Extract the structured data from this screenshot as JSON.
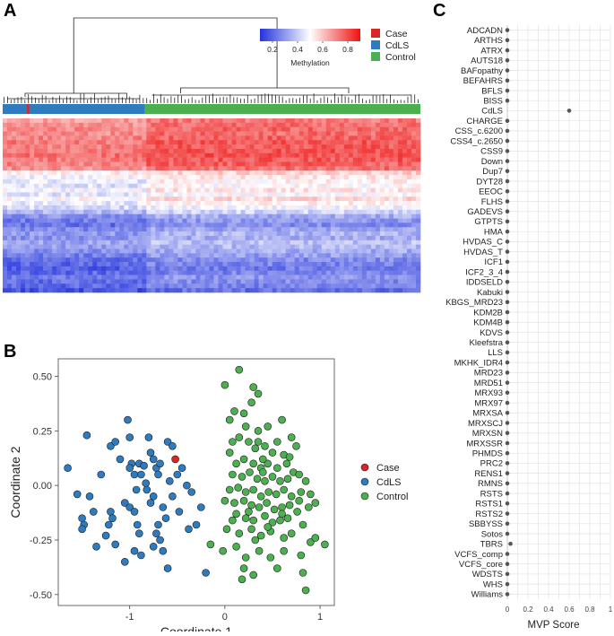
{
  "panel_labels": {
    "a": "A",
    "b": "B",
    "c": "C"
  },
  "colors": {
    "case": "#d62728",
    "cdls": "#2f7bbf",
    "control": "#4caf50",
    "heat_low": "#2233dd",
    "heat_mid": "#ffffff",
    "heat_high": "#ee1111"
  },
  "chart_data": [
    {
      "type": "heatmap",
      "panel": "A",
      "colorbar": {
        "title": "Methylation",
        "ticks": [
          "0.2",
          "0.4",
          "0.6",
          "0.8"
        ],
        "range": [
          0.1,
          0.9
        ]
      },
      "legend": [
        {
          "label": "Case",
          "color": "#d62728"
        },
        {
          "label": "CdLS",
          "color": "#2f7bbf"
        },
        {
          "label": "Control",
          "color": "#4caf50"
        }
      ],
      "annotation_groups": [
        {
          "group": "CdLS",
          "fraction": 0.34
        },
        {
          "group": "Control",
          "fraction": 0.66
        }
      ],
      "case_column_fraction": 0.058,
      "row_profile_mean": [
        0.78,
        0.8,
        0.82,
        0.81,
        0.83,
        0.85,
        0.84,
        0.86,
        0.87,
        0.85,
        0.83,
        0.8,
        0.6,
        0.55,
        0.52,
        0.5,
        0.55,
        0.5,
        0.58,
        0.52,
        0.48,
        0.4,
        0.3,
        0.25,
        0.22,
        0.28,
        0.32,
        0.3,
        0.35,
        0.33,
        0.3,
        0.26,
        0.22,
        0.2,
        0.18,
        0.2,
        0.24,
        0.22,
        0.2,
        0.15
      ],
      "cdls_offset": -0.07
    },
    {
      "type": "scatter",
      "panel": "B",
      "xlabel": "Coordinate 1",
      "ylabel": "Coordinate 2",
      "xlim": [
        -1.75,
        1.15
      ],
      "ylim": [
        -0.55,
        0.58
      ],
      "xticks": [
        -1,
        0,
        1
      ],
      "yticks": [
        -0.5,
        -0.25,
        0.0,
        0.25,
        0.5
      ],
      "xtick_labels": [
        "-1",
        "0",
        "1"
      ],
      "ytick_labels": [
        "-0.50",
        "-0.25",
        "0.00",
        "0.25",
        "0.50"
      ],
      "legend": [
        {
          "label": "Case",
          "color": "#d62728"
        },
        {
          "label": "CdLS",
          "color": "#2f7bbf"
        },
        {
          "label": "Control",
          "color": "#4caf50"
        }
      ],
      "series": [
        {
          "name": "Case",
          "color": "#d62728",
          "points": [
            [
              -0.52,
              0.12
            ]
          ]
        },
        {
          "name": "CdLS",
          "color": "#2f7bbf",
          "points": [
            [
              -1.65,
              0.08
            ],
            [
              -1.55,
              -0.04
            ],
            [
              -1.45,
              0.23
            ],
            [
              -1.42,
              -0.05
            ],
            [
              -1.38,
              -0.12
            ],
            [
              -1.5,
              -0.15
            ],
            [
              -1.48,
              -0.18
            ],
            [
              -1.5,
              -0.2
            ],
            [
              -1.35,
              -0.28
            ],
            [
              -1.25,
              -0.23
            ],
            [
              -1.2,
              0.18
            ],
            [
              -1.15,
              0.2
            ],
            [
              -1.1,
              0.12
            ],
            [
              -1.2,
              -0.12
            ],
            [
              -1.18,
              -0.15
            ],
            [
              -1.22,
              -0.18
            ],
            [
              -1.15,
              -0.27
            ],
            [
              -1.05,
              -0.35
            ],
            [
              -1.02,
              0.3
            ],
            [
              -1.0,
              0.22
            ],
            [
              -0.98,
              0.1
            ],
            [
              -0.95,
              0.05
            ],
            [
              -1.0,
              0.08
            ],
            [
              -0.93,
              -0.02
            ],
            [
              -0.9,
              0.1
            ],
            [
              -0.88,
              0.05
            ],
            [
              -0.85,
              0.09
            ],
            [
              -0.83,
              0.01
            ],
            [
              -1.05,
              -0.08
            ],
            [
              -1.0,
              -0.1
            ],
            [
              -0.95,
              -0.12
            ],
            [
              -0.92,
              -0.18
            ],
            [
              -0.9,
              -0.22
            ],
            [
              -0.95,
              -0.3
            ],
            [
              -0.8,
              0.22
            ],
            [
              -0.78,
              0.15
            ],
            [
              -0.75,
              0.12
            ],
            [
              -0.72,
              0.08
            ],
            [
              -0.82,
              -0.02
            ],
            [
              -0.78,
              -0.08
            ],
            [
              -0.75,
              -0.05
            ],
            [
              -0.7,
              0.05
            ],
            [
              -0.68,
              0.1
            ],
            [
              -0.65,
              -0.1
            ],
            [
              -0.62,
              -0.15
            ],
            [
              -0.7,
              -0.18
            ],
            [
              -0.72,
              -0.22
            ],
            [
              -0.68,
              -0.25
            ],
            [
              -0.75,
              -0.28
            ],
            [
              -0.65,
              -0.3
            ],
            [
              -0.6,
              0.2
            ],
            [
              -0.58,
              0.02
            ],
            [
              -0.55,
              -0.05
            ],
            [
              -0.5,
              0.05
            ],
            [
              -0.45,
              0.08
            ],
            [
              -0.48,
              -0.12
            ],
            [
              -0.4,
              0.0
            ],
            [
              -0.38,
              -0.2
            ],
            [
              -0.35,
              -0.03
            ],
            [
              -0.3,
              -0.18
            ],
            [
              -0.25,
              -0.1
            ],
            [
              -0.2,
              -0.4
            ],
            [
              -1.3,
              0.05
            ],
            [
              -0.88,
              -0.32
            ],
            [
              -0.6,
              -0.38
            ],
            [
              -0.55,
              0.18
            ]
          ]
        },
        {
          "name": "Control",
          "color": "#4caf50",
          "points": [
            [
              0.15,
              0.53
            ],
            [
              0.3,
              0.45
            ],
            [
              0.35,
              0.42
            ],
            [
              0.28,
              0.38
            ],
            [
              0.2,
              0.33
            ],
            [
              0.0,
              0.46
            ],
            [
              0.05,
              0.3
            ],
            [
              0.1,
              0.34
            ],
            [
              0.22,
              0.27
            ],
            [
              0.35,
              0.25
            ],
            [
              0.45,
              0.27
            ],
            [
              0.6,
              0.3
            ],
            [
              0.7,
              0.22
            ],
            [
              0.08,
              0.2
            ],
            [
              0.15,
              0.22
            ],
            [
              0.25,
              0.2
            ],
            [
              0.32,
              0.17
            ],
            [
              0.42,
              0.18
            ],
            [
              0.5,
              0.15
            ],
            [
              0.62,
              0.14
            ],
            [
              0.75,
              0.18
            ],
            [
              0.05,
              0.15
            ],
            [
              0.12,
              0.1
            ],
            [
              0.2,
              0.12
            ],
            [
              0.3,
              0.1
            ],
            [
              0.38,
              0.08
            ],
            [
              0.45,
              0.1
            ],
            [
              0.55,
              0.08
            ],
            [
              0.65,
              0.1
            ],
            [
              0.72,
              0.06
            ],
            [
              0.08,
              0.05
            ],
            [
              0.18,
              0.04
            ],
            [
              0.26,
              0.06
            ],
            [
              0.34,
              0.03
            ],
            [
              0.42,
              0.02
            ],
            [
              0.5,
              0.04
            ],
            [
              0.58,
              0.02
            ],
            [
              0.66,
              0.03
            ],
            [
              0.78,
              0.05
            ],
            [
              0.85,
              0.02
            ],
            [
              0.05,
              -0.02
            ],
            [
              0.14,
              -0.01
            ],
            [
              0.22,
              -0.03
            ],
            [
              0.3,
              -0.02
            ],
            [
              0.38,
              -0.05
            ],
            [
              0.46,
              -0.03
            ],
            [
              0.54,
              -0.04
            ],
            [
              0.62,
              -0.02
            ],
            [
              0.7,
              -0.05
            ],
            [
              0.8,
              -0.03
            ],
            [
              0.9,
              -0.04
            ],
            [
              0.0,
              -0.07
            ],
            [
              0.1,
              -0.08
            ],
            [
              0.2,
              -0.07
            ],
            [
              0.28,
              -0.09
            ],
            [
              0.36,
              -0.1
            ],
            [
              0.44,
              -0.08
            ],
            [
              0.52,
              -0.11
            ],
            [
              0.6,
              -0.1
            ],
            [
              0.68,
              -0.09
            ],
            [
              0.76,
              -0.12
            ],
            [
              0.88,
              -0.1
            ],
            [
              0.95,
              -0.08
            ],
            [
              0.12,
              -0.13
            ],
            [
              0.22,
              -0.15
            ],
            [
              0.3,
              -0.16
            ],
            [
              0.42,
              -0.14
            ],
            [
              0.5,
              -0.17
            ],
            [
              0.58,
              -0.16
            ],
            [
              0.66,
              -0.15
            ],
            [
              0.82,
              -0.18
            ],
            [
              0.02,
              -0.2
            ],
            [
              0.15,
              -0.22
            ],
            [
              0.28,
              -0.2
            ],
            [
              0.38,
              -0.23
            ],
            [
              0.48,
              -0.21
            ],
            [
              0.62,
              -0.24
            ],
            [
              0.7,
              -0.22
            ],
            [
              0.9,
              -0.26
            ],
            [
              1.05,
              -0.27
            ],
            [
              -0.15,
              -0.27
            ],
            [
              -0.02,
              -0.3
            ],
            [
              0.12,
              -0.28
            ],
            [
              0.22,
              -0.33
            ],
            [
              0.36,
              -0.3
            ],
            [
              0.48,
              -0.33
            ],
            [
              0.62,
              -0.3
            ],
            [
              0.8,
              -0.32
            ],
            [
              0.95,
              -0.24
            ],
            [
              0.2,
              -0.38
            ],
            [
              0.3,
              -0.41
            ],
            [
              0.55,
              -0.38
            ],
            [
              0.82,
              -0.4
            ],
            [
              0.85,
              -0.48
            ],
            [
              0.18,
              -0.43
            ],
            [
              0.35,
              0.2
            ],
            [
              0.55,
              0.2
            ],
            [
              0.4,
              0.12
            ],
            [
              0.25,
              -0.12
            ],
            [
              0.6,
              -0.13
            ],
            [
              0.45,
              -0.19
            ],
            [
              0.4,
              0.06
            ],
            [
              0.68,
              0.13
            ],
            [
              0.78,
              -0.07
            ],
            [
              0.08,
              -0.16
            ],
            [
              0.32,
              -0.25
            ]
          ]
        }
      ]
    },
    {
      "type": "scatter",
      "panel": "C",
      "xlabel": "MVP Score",
      "xlim": [
        0,
        1
      ],
      "xticks": [
        0,
        0.2,
        0.4,
        0.6,
        0.8,
        1
      ],
      "xtick_labels": [
        "0",
        "0.2",
        "0.4",
        "0.6",
        "0.8",
        "1"
      ],
      "categories": [
        "ADCADN",
        "ARTHS",
        "ATRX",
        "AUTS18",
        "BAFopathy",
        "BEFAHRS",
        "BFLS",
        "BISS",
        "CdLS",
        "CHARGE",
        "CSS_c.6200",
        "CSS4_c.2650",
        "CSS9",
        "Down",
        "Dup7",
        "DYT28",
        "EEOC",
        "FLHS",
        "GADEVS",
        "GTPTS",
        "HMA",
        "HVDAS_C",
        "HVDAS_T",
        "ICF1",
        "ICF2_3_4",
        "IDDSELD",
        "Kabuki",
        "KBGS_MRD23",
        "KDM2B",
        "KDM4B",
        "KDVS",
        "Kleefstra",
        "LLS",
        "MKHK_IDR4",
        "MRD23",
        "MRD51",
        "MRX93",
        "MRX97",
        "MRXSA",
        "MRXSCJ",
        "MRXSN",
        "MRXSSR",
        "PHMDS",
        "PRC2",
        "RENS1",
        "RMNS",
        "RSTS",
        "RSTS1",
        "RSTS2",
        "SBBYSS",
        "Sotos",
        "TBRS",
        "VCFS_comp",
        "VCFS_core",
        "WDSTS",
        "WHS",
        "Williams"
      ],
      "values": [
        0.0,
        0.0,
        0.0,
        0.0,
        0.0,
        0.0,
        0.0,
        0.0,
        0.6,
        0.0,
        0.0,
        0.0,
        0.0,
        0.0,
        0.0,
        0.0,
        0.0,
        0.0,
        0.0,
        0.0,
        0.0,
        0.0,
        0.0,
        0.0,
        0.0,
        0.0,
        0.0,
        0.0,
        0.0,
        0.0,
        0.0,
        0.0,
        0.0,
        0.0,
        0.0,
        0.0,
        0.0,
        0.0,
        0.0,
        0.0,
        0.0,
        0.0,
        0.0,
        0.0,
        0.0,
        0.0,
        0.0,
        0.0,
        0.0,
        0.0,
        0.0,
        0.03,
        0.0,
        0.0,
        0.0,
        0.0,
        0.0
      ]
    }
  ]
}
